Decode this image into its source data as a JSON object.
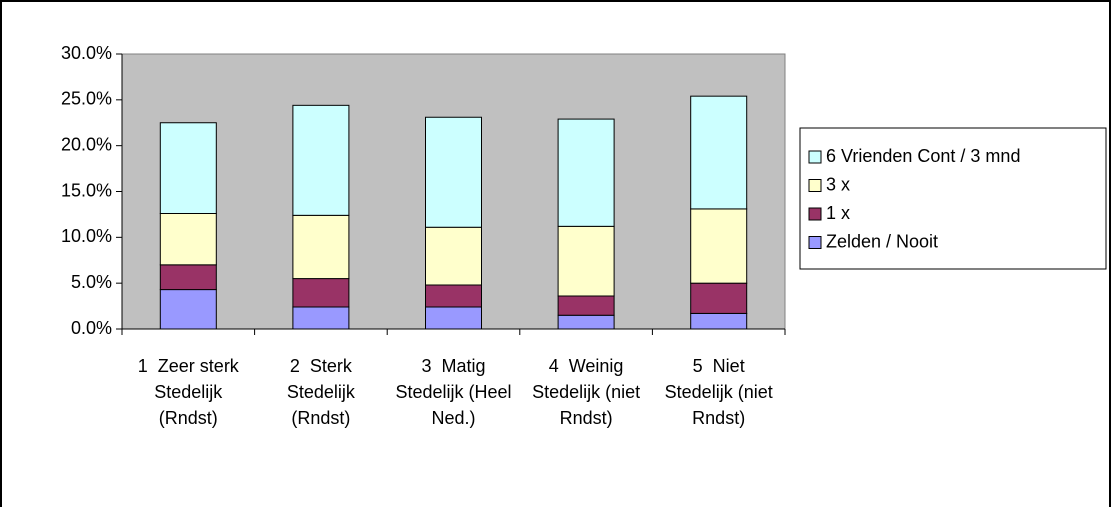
{
  "chart_data": {
    "type": "stacked_bar",
    "categories": [
      "1  Zeer sterk Stedelijk (Rndst)",
      "2  Sterk Stedelijk (Rndst)",
      "3  Matig Stedelijk (Heel Ned.)",
      "4  Weinig Stedelijk (niet Rndst)",
      "5  Niet Stedelijk (niet Rndst)"
    ],
    "series": [
      {
        "name": "Zelden / Nooit",
        "color": "#9999ff",
        "values": [
          4.3,
          2.4,
          2.4,
          1.5,
          1.7
        ]
      },
      {
        "name": "1  x",
        "color": "#993366",
        "values": [
          2.7,
          3.1,
          2.4,
          2.1,
          3.3
        ]
      },
      {
        "name": "3  x",
        "color": "#ffffcc",
        "values": [
          5.6,
          6.9,
          6.3,
          7.6,
          8.1
        ]
      },
      {
        "name": "6 Vrienden Cont / 3 mnd",
        "color": "#ccffff",
        "values": [
          9.9,
          12.0,
          12.0,
          11.7,
          12.3
        ]
      }
    ],
    "ylim": [
      0,
      30
    ],
    "yticks": [
      {
        "value": 0,
        "label": "0.0%"
      },
      {
        "value": 5,
        "label": "5.0%"
      },
      {
        "value": 10,
        "label": "10.0%"
      },
      {
        "value": 15,
        "label": "15.0%"
      },
      {
        "value": 20,
        "label": "20.0%"
      },
      {
        "value": 25,
        "label": "25.0%"
      },
      {
        "value": 30,
        "label": "30.0%"
      }
    ],
    "plot_background": "#c0c0c0",
    "legend": "right"
  }
}
